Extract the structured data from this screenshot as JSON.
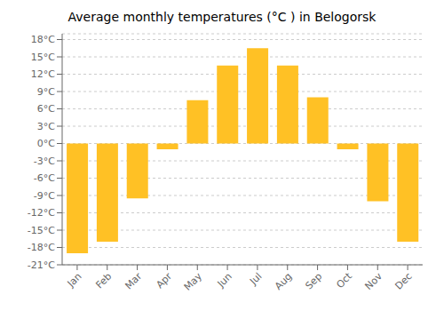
{
  "chart_data": {
    "type": "bar",
    "title": "Average monthly temperatures (°C ) in Belogorsk",
    "categories": [
      "Jan",
      "Feb",
      "Mar",
      "Apr",
      "May",
      "Jun",
      "Jul",
      "Aug",
      "Sep",
      "Oct",
      "Nov",
      "Dec"
    ],
    "values": [
      -19,
      -17,
      -9.5,
      -1,
      7.5,
      13.5,
      16.5,
      13.5,
      8,
      -1,
      -10,
      -17
    ],
    "color": "#FFC125",
    "ylim": [
      -21,
      19
    ],
    "yticks": [
      {
        "value": -21,
        "label": "-21°C"
      },
      {
        "value": -18,
        "label": "-18°C"
      },
      {
        "value": -15,
        "label": "-15°C"
      },
      {
        "value": -12,
        "label": "-12°C"
      },
      {
        "value": -9,
        "label": "-9°C"
      },
      {
        "value": -6,
        "label": "-6°C"
      },
      {
        "value": -3,
        "label": "-3°C"
      },
      {
        "value": 0,
        "label": "0°C"
      },
      {
        "value": 3,
        "label": "3°C"
      },
      {
        "value": 6,
        "label": "6°C"
      },
      {
        "value": 9,
        "label": "9°C"
      },
      {
        "value": 12,
        "label": "12°C"
      },
      {
        "value": 15,
        "label": "15°C"
      },
      {
        "value": 18,
        "label": "18°C"
      }
    ],
    "grid": true
  }
}
